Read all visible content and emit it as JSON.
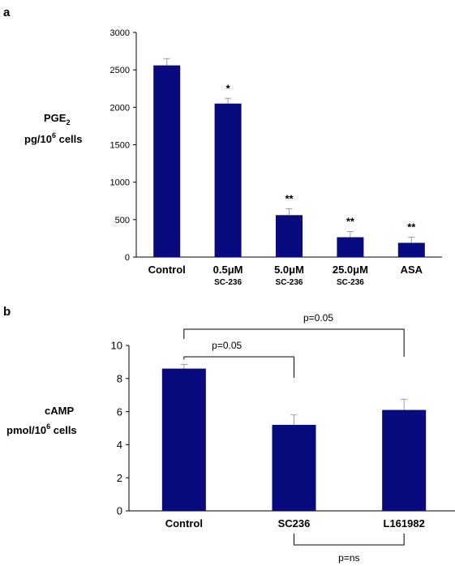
{
  "panel_a": {
    "label": "a",
    "ylabel_line1": "PGE",
    "ylabel_line1_sub": "2",
    "ylabel_line2_pre": "pg/10",
    "ylabel_line2_sup": "6",
    "ylabel_line2_post": " cells"
  },
  "panel_b": {
    "label": "b",
    "ylabel_line1": "cAMP",
    "ylabel_line2_pre": "pmol/10",
    "ylabel_line2_sup": "6",
    "ylabel_line2_post": " cells"
  },
  "colors": {
    "bar": "#0a0a7f",
    "error": "#9a9ab0",
    "axis": "#000000"
  },
  "chart_data": [
    {
      "type": "bar",
      "ylim": [
        0,
        3000
      ],
      "yticks": [
        "0",
        "500",
        "1000",
        "1500",
        "2000",
        "2500",
        "3000"
      ],
      "categories": [
        {
          "main": "Control",
          "sub": ""
        },
        {
          "main": "0.5μM",
          "sub": "SC-236"
        },
        {
          "main": "5.0μM",
          "sub": "SC-236"
        },
        {
          "main": "25.0μM",
          "sub": "SC-236"
        },
        {
          "main": "ASA",
          "sub": ""
        }
      ],
      "values": [
        2560,
        2050,
        560,
        265,
        190
      ],
      "errors": [
        90,
        70,
        85,
        75,
        75
      ],
      "annotations": [
        "",
        "*",
        "**",
        "**",
        "**"
      ]
    },
    {
      "type": "bar",
      "ylim": [
        0,
        10
      ],
      "yticks": [
        "0",
        "2",
        "4",
        "6",
        "8",
        "10"
      ],
      "categories": [
        {
          "main": "Control",
          "sub": ""
        },
        {
          "main": "SC236",
          "sub": ""
        },
        {
          "main": "L161982",
          "sub": ""
        }
      ],
      "values": [
        8.6,
        5.2,
        6.1
      ],
      "errors": [
        0.25,
        0.6,
        0.65
      ],
      "comparisons": [
        {
          "label": "p=0.05",
          "from": 0,
          "to": 1,
          "side": "top"
        },
        {
          "label": "p=0.05",
          "from": 0,
          "to": 2,
          "side": "top"
        },
        {
          "label": "p=ns",
          "from": 1,
          "to": 2,
          "side": "bottom"
        }
      ]
    }
  ]
}
